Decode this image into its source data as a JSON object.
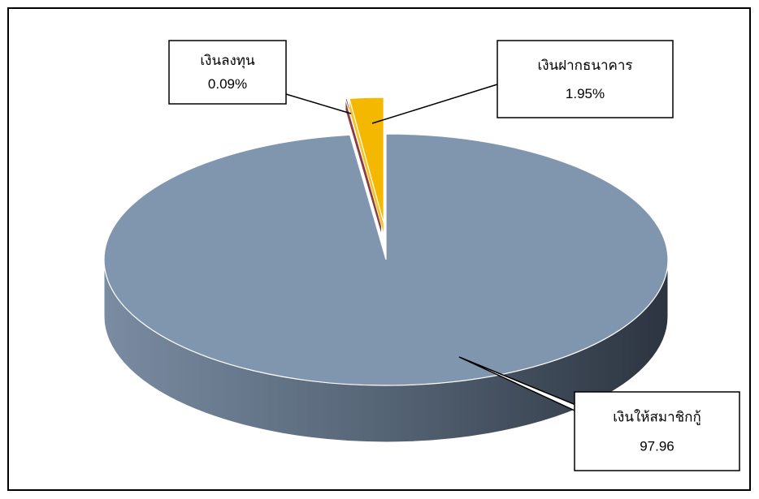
{
  "chart_data": {
    "type": "pie",
    "categories": [
      "เงินให้สมาชิกกู้",
      "เงินลงทุน",
      "เงินฝากธนาคาร"
    ],
    "values": [
      97.96,
      0.09,
      1.95
    ],
    "value_labels": [
      "97.96",
      "0.09%",
      "1.95%"
    ],
    "colors": [
      "#8096ae",
      "#7a1a1a",
      "#f5b800"
    ],
    "three_d": true
  }
}
